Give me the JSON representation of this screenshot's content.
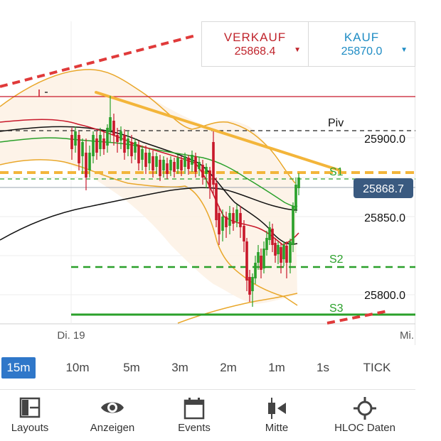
{
  "quote": {
    "sell_label": "VERKAUF",
    "sell_price": "25868.4",
    "buy_label": "KAUF",
    "buy_price": "25870.0"
  },
  "chart_data": {
    "type": "candlestick",
    "y_axis_labels": [
      "25900.0",
      "25850.0",
      "25800.0"
    ],
    "current_price_label": "25868.7",
    "x_axis_labels": [
      "Di. 19",
      "Mi."
    ],
    "pivot_labels": [
      "Piv",
      "S1",
      "S2",
      "S3"
    ],
    "colors": {
      "up": "#2aa02a",
      "down": "#c8182a",
      "trendline": "#f3b53a",
      "bollinger": "#e9a72a",
      "ma_red": "#c8182a",
      "ma_green": "#2aa02a",
      "ma_black": "#111111",
      "price_tag": "#3a5a80"
    }
  },
  "timeframes": [
    {
      "label": "15m",
      "active": true
    },
    {
      "label": "10m",
      "active": false
    },
    {
      "label": "5m",
      "active": false
    },
    {
      "label": "3m",
      "active": false
    },
    {
      "label": "2m",
      "active": false
    },
    {
      "label": "1m",
      "active": false
    },
    {
      "label": "1s",
      "active": false
    },
    {
      "label": "TICK",
      "active": false
    }
  ],
  "nav": [
    {
      "label": "Layouts",
      "icon": "layouts-icon"
    },
    {
      "label": "Anzeigen",
      "icon": "eye-icon"
    },
    {
      "label": "Events",
      "icon": "calendar-icon"
    },
    {
      "label": "Mitte",
      "icon": "center-icon"
    },
    {
      "label": "HLOC Daten",
      "icon": "crosshair-icon"
    }
  ]
}
